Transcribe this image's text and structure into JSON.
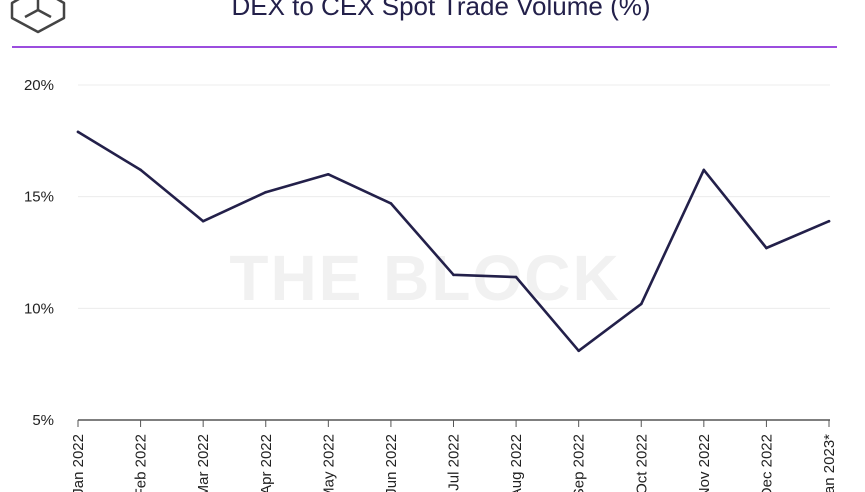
{
  "header": {
    "logo": "the-block-cube-logo",
    "title": "DEX to CEX Spot Trade Volume (%)",
    "accent_color": "#9b4dde"
  },
  "watermark": "THE BLOCK",
  "chart_data": {
    "type": "line",
    "title": "DEX to CEX Spot Trade Volume (%)",
    "xlabel": "",
    "ylabel": "",
    "categories": [
      "Jan 2022",
      "Feb 2022",
      "Mar 2022",
      "Apr 2022",
      "May 2022",
      "Jun 2022",
      "Jul 2022",
      "Aug 2022",
      "Sep 2022",
      "Oct 2022",
      "Nov 2022",
      "Dec 2022",
      "Jan 2023*"
    ],
    "series": [
      {
        "name": "",
        "color": "#23204a",
        "values": [
          17.9,
          16.2,
          13.9,
          15.2,
          16.0,
          14.7,
          11.5,
          11.4,
          8.1,
          10.2,
          16.2,
          12.7,
          13.9
        ]
      }
    ],
    "ylim": [
      5,
      20
    ],
    "yticks": [
      5,
      10,
      15,
      20
    ],
    "ytick_labels": [
      "5%",
      "10%",
      "15%",
      "20%"
    ],
    "grid": true,
    "legend": "none"
  }
}
